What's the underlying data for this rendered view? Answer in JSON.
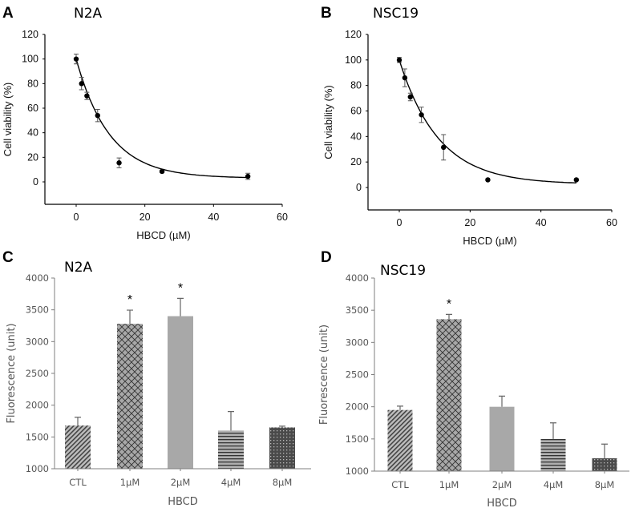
{
  "chart_data": [
    {
      "type": "scatter",
      "panel_label": "A",
      "title": "N2A",
      "xlabel": "HBCD (µM)",
      "ylabel": "Cell viability (%)",
      "xlim": [
        -9,
        60
      ],
      "ylim": [
        -18,
        120
      ],
      "xticks": [
        "0",
        "20",
        "40",
        "60"
      ],
      "yticks": [
        "0",
        "20",
        "40",
        "60",
        "80",
        "100",
        "120"
      ],
      "x": [
        0,
        1.5625,
        3.125,
        6.25,
        12.5,
        25,
        50
      ],
      "y": [
        100,
        80,
        70,
        54,
        15.5,
        8.5,
        4.5
      ],
      "error": [
        4,
        5,
        3,
        5,
        4,
        1,
        2.5
      ],
      "fit": {
        "type": "exponential-decay",
        "plateau": 3,
        "top": 100,
        "k": 0.103
      }
    },
    {
      "type": "scatter",
      "panel_label": "B",
      "title": "NSC19",
      "xlabel": "HBCD (µM)",
      "ylabel": "Cell viability (%)",
      "xlim": [
        -9,
        60
      ],
      "ylim": [
        -18,
        120
      ],
      "xticks": [
        "0",
        "20",
        "40",
        "60"
      ],
      "yticks": [
        "0",
        "20",
        "40",
        "60",
        "80",
        "100",
        "120"
      ],
      "x": [
        0,
        1.5625,
        3.125,
        6.25,
        12.5,
        25,
        50
      ],
      "y": [
        100,
        86,
        71,
        57,
        31.5,
        6,
        6
      ],
      "error": [
        2,
        7,
        3,
        6,
        10,
        0.5,
        0.5
      ],
      "fit": {
        "type": "exponential-decay",
        "plateau": 2.5,
        "top": 100,
        "k": 0.09
      }
    },
    {
      "type": "bar",
      "panel_label": "C",
      "title": "N2A",
      "xlabel": "HBCD",
      "ylabel": "Fluorescence (unit)",
      "ylim": [
        1000,
        4000
      ],
      "yticks": [
        "1000",
        "1500",
        "2000",
        "2500",
        "3000",
        "3500",
        "4000"
      ],
      "categories": [
        "CTL",
        "1μM",
        "2μM",
        "4μM",
        "8μM"
      ],
      "values": [
        1680,
        3280,
        3400,
        1600,
        1650
      ],
      "error": [
        130,
        215,
        280,
        300,
        20
      ],
      "significance": [
        "",
        "*",
        "*",
        "",
        ""
      ]
    },
    {
      "type": "bar",
      "panel_label": "D",
      "title": "NSC19",
      "xlabel": "HBCD",
      "ylabel": "Fluorescence (unit)",
      "ylim": [
        1000,
        4000
      ],
      "yticks": [
        "1000",
        "1500",
        "2000",
        "2500",
        "3000",
        "3500",
        "4000"
      ],
      "categories": [
        "CTL",
        "1μM",
        "2μM",
        "4μM",
        "8μM"
      ],
      "values": [
        1950,
        3360,
        2000,
        1500,
        1200
      ],
      "error": [
        60,
        75,
        165,
        250,
        220
      ],
      "significance": [
        "",
        "*",
        "",
        "",
        ""
      ]
    }
  ],
  "colors": {
    "bar_gray": "#a8a8a8",
    "bar_dark": "#5a5a5a",
    "axis_gray": "#7f7f7f",
    "ink": "#000000"
  }
}
